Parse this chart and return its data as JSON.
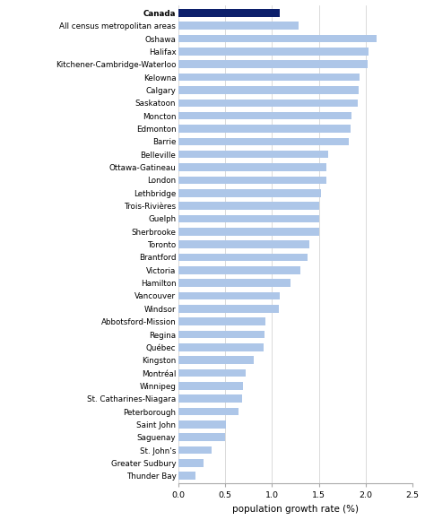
{
  "categories": [
    "Thunder Bay",
    "Greater Sudbury",
    "St. John's",
    "Saguenay",
    "Saint John",
    "Peterborough",
    "St. Catharines-Niagara",
    "Winnipeg",
    "Montréal",
    "Kingston",
    "Québec",
    "Regina",
    "Abbotsford-Mission",
    "Windsor",
    "Vancouver",
    "Hamilton",
    "Victoria",
    "Brantford",
    "Toronto",
    "Sherbrooke",
    "Guelph",
    "Trois-Rivières",
    "Lethbridge",
    "London",
    "Ottawa-Gatineau",
    "Belleville",
    "Barrie",
    "Edmonton",
    "Moncton",
    "Saskatoon",
    "Calgary",
    "Kelowna",
    "Kitchener-Cambridge-Waterloo",
    "Halifax",
    "Oshawa",
    "All census metropolitan areas",
    "Canada"
  ],
  "values": [
    0.18,
    0.27,
    0.35,
    0.5,
    0.51,
    0.64,
    0.68,
    0.69,
    0.72,
    0.8,
    0.91,
    0.92,
    0.93,
    1.07,
    1.08,
    1.2,
    1.3,
    1.38,
    1.4,
    1.5,
    1.5,
    1.5,
    1.52,
    1.58,
    1.58,
    1.6,
    1.82,
    1.84,
    1.85,
    1.92,
    1.93,
    1.94,
    2.02,
    2.03,
    2.12,
    1.28,
    1.08
  ],
  "bar_colors": [
    "#adc6e8",
    "#adc6e8",
    "#adc6e8",
    "#adc6e8",
    "#adc6e8",
    "#adc6e8",
    "#adc6e8",
    "#adc6e8",
    "#adc6e8",
    "#adc6e8",
    "#adc6e8",
    "#adc6e8",
    "#adc6e8",
    "#adc6e8",
    "#adc6e8",
    "#adc6e8",
    "#adc6e8",
    "#adc6e8",
    "#adc6e8",
    "#adc6e8",
    "#adc6e8",
    "#adc6e8",
    "#adc6e8",
    "#adc6e8",
    "#adc6e8",
    "#adc6e8",
    "#adc6e8",
    "#adc6e8",
    "#adc6e8",
    "#adc6e8",
    "#adc6e8",
    "#adc6e8",
    "#adc6e8",
    "#adc6e8",
    "#adc6e8",
    "#adc6e8",
    "#0c1f6b"
  ],
  "xlabel": "population growth rate (%)",
  "xlim": [
    0,
    2.5
  ],
  "xticks": [
    0.0,
    0.5,
    1.0,
    1.5,
    2.0,
    2.5
  ],
  "background_color": "#ffffff",
  "bar_height": 0.6,
  "label_fontsize": 6.3,
  "tick_fontsize": 6.8,
  "xlabel_fontsize": 7.5,
  "grid_color": "#cccccc",
  "grid_linewidth": 0.5,
  "spine_color": "#aaaaaa"
}
